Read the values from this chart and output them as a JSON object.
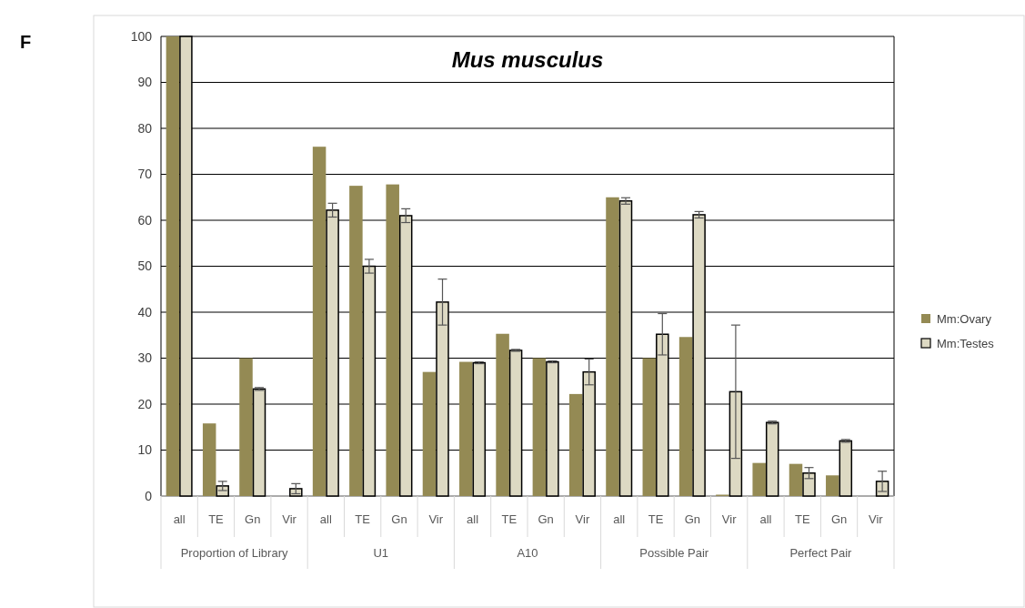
{
  "chart_data": {
    "type": "bar",
    "title": "Mus musculus",
    "categories": [
      "all",
      "TE",
      "Gn",
      "Vir",
      "all",
      "TE",
      "Gn",
      "Vir",
      "all",
      "TE",
      "Gn",
      "Vir",
      "all",
      "TE",
      "Gn",
      "Vir",
      "all",
      "TE",
      "Gn",
      "Vir"
    ],
    "series": [
      {
        "name": "Mm:Ovary",
        "color": "#948a54",
        "values": [
          100,
          15.8,
          30,
          0,
          76,
          67.5,
          67.8,
          27,
          29.2,
          35.3,
          30,
          22.2,
          65,
          30,
          34.6,
          0.3,
          7.2,
          7,
          4.5,
          0
        ]
      },
      {
        "name": "Mm:Testes",
        "color": "#ddd9c3",
        "values": [
          100,
          2.2,
          23.3,
          1.6,
          62.2,
          50,
          61,
          42.2,
          29,
          31.7,
          29.2,
          27,
          64.2,
          35.2,
          61.2,
          22.7,
          16,
          5,
          12,
          3.2
        ],
        "errors": [
          0,
          1,
          0.3,
          1.1,
          1.5,
          1.5,
          1.5,
          5,
          0.2,
          0.2,
          0.2,
          2.8,
          0.7,
          4.5,
          0.7,
          14.5,
          0.3,
          1.2,
          0.3,
          2.2
        ]
      }
    ],
    "ylim": [
      0,
      100
    ],
    "yticks": [
      0,
      10,
      20,
      30,
      40,
      50,
      60,
      70,
      80,
      90,
      100
    ],
    "grid": "y",
    "legend": "right",
    "annotations": [
      "F",
      "Proportion of Library",
      "U1",
      "A10",
      "Possible Pair",
      "Perfect Pair"
    ]
  }
}
